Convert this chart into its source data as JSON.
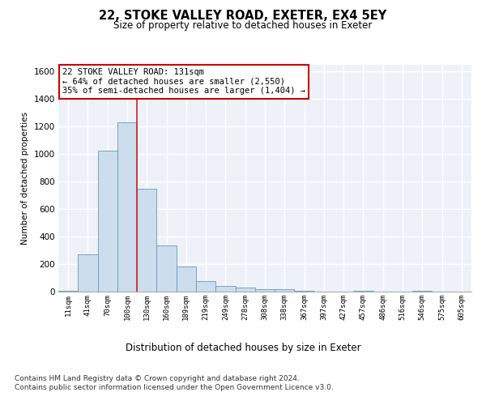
{
  "title1": "22, STOKE VALLEY ROAD, EXETER, EX4 5EY",
  "title2": "Size of property relative to detached houses in Exeter",
  "xlabel": "Distribution of detached houses by size in Exeter",
  "ylabel": "Number of detached properties",
  "bin_labels": [
    "11sqm",
    "41sqm",
    "70sqm",
    "100sqm",
    "130sqm",
    "160sqm",
    "189sqm",
    "219sqm",
    "249sqm",
    "278sqm",
    "308sqm",
    "338sqm",
    "367sqm",
    "397sqm",
    "427sqm",
    "457sqm",
    "486sqm",
    "516sqm",
    "546sqm",
    "575sqm",
    "605sqm"
  ],
  "bar_heights": [
    5,
    270,
    1025,
    1230,
    750,
    335,
    185,
    75,
    40,
    30,
    20,
    15,
    5,
    0,
    0,
    5,
    0,
    0,
    5,
    0,
    0
  ],
  "bar_color": "#ccdded",
  "bar_edge_color": "#6699bb",
  "ylim": [
    0,
    1650
  ],
  "yticks": [
    0,
    200,
    400,
    600,
    800,
    1000,
    1200,
    1400,
    1600
  ],
  "property_line_x": 3.5,
  "property_line_color": "#cc2222",
  "annotation_box_text": "22 STOKE VALLEY ROAD: 131sqm\n← 64% of detached houses are smaller (2,550)\n35% of semi-detached houses are larger (1,404) →",
  "annotation_box_color": "#cc0000",
  "footer1": "Contains HM Land Registry data © Crown copyright and database right 2024.",
  "footer2": "Contains public sector information licensed under the Open Government Licence v3.0.",
  "bg_color": "#eef2f8",
  "grid_color": "#ffffff"
}
